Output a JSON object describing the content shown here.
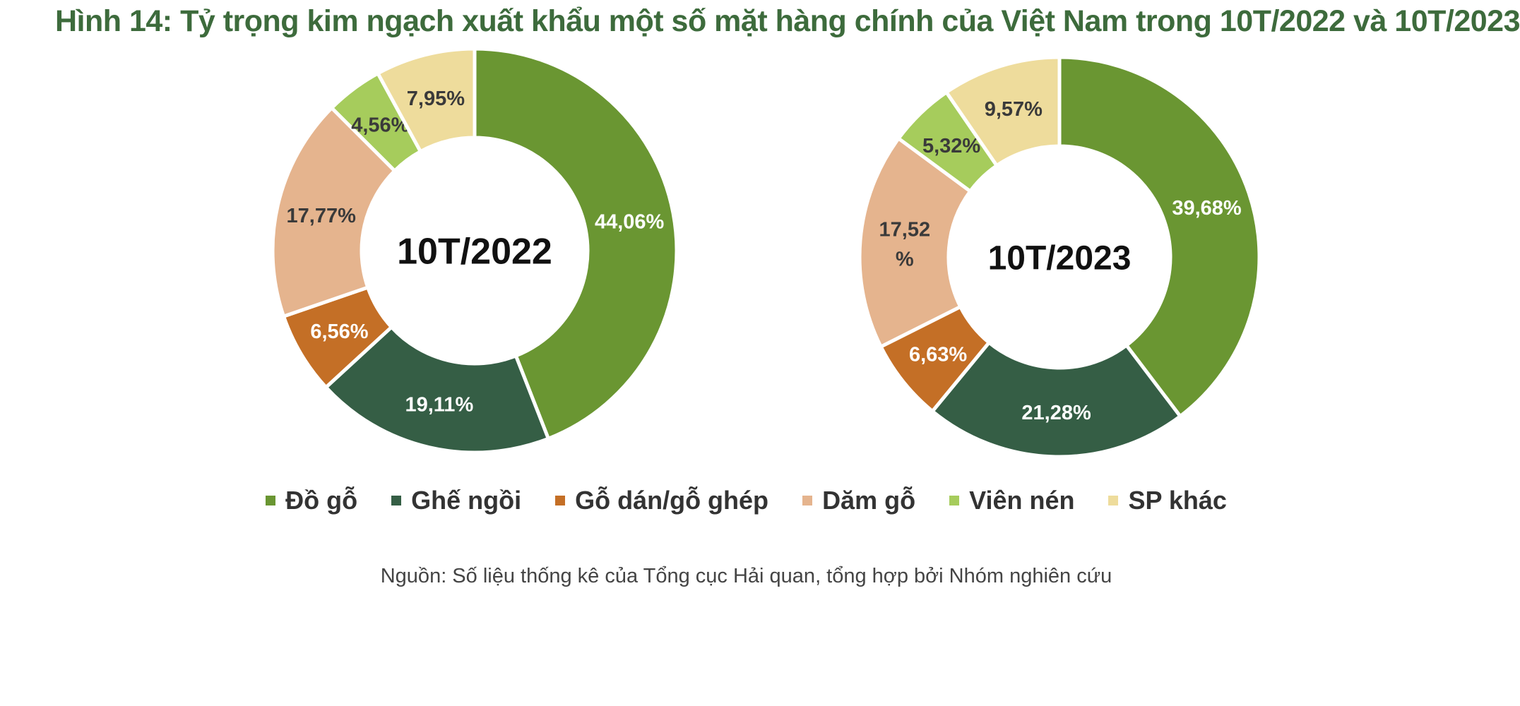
{
  "title": "Hình 14: Tỷ trọng kim ngạch xuất khẩu một số mặt hàng chính của Việt Nam trong 10T/2022 và 10T/2023",
  "source": "Nguồn: Số liệu thống kê của Tổng cục Hải quan, tổng hợp bởi Nhóm nghiên cứu",
  "chart_data": [
    {
      "type": "pie",
      "variant": "donut",
      "center_label": "10T/2022",
      "categories": [
        "Đồ gỗ",
        "Ghế ngồi",
        "Gỗ dán/gỗ ghép",
        "Dăm gỗ",
        "Viên nén",
        "SP khác"
      ],
      "values": [
        44.06,
        19.11,
        6.56,
        17.77,
        4.56,
        7.95
      ],
      "labels": [
        "44,06%",
        "19,11%",
        "6,56%",
        "17,77%",
        "4,56%",
        "7,95%"
      ],
      "colors": [
        "#6a9632",
        "#355e45",
        "#c46f26",
        "#e5b48e",
        "#a6cc5c",
        "#eedc9c"
      ]
    },
    {
      "type": "pie",
      "variant": "donut",
      "center_label": "10T/2023",
      "categories": [
        "Đồ gỗ",
        "Ghế ngồi",
        "Gỗ dán/gỗ ghép",
        "Dăm gỗ",
        "Viên nén",
        "SP khác"
      ],
      "values": [
        39.68,
        21.28,
        6.63,
        17.52,
        5.32,
        9.57
      ],
      "labels": [
        "39,68%",
        "21,28%",
        "6,63%",
        "17,52\n%",
        "5,32%",
        "9,57%"
      ],
      "colors": [
        "#6a9632",
        "#355e45",
        "#c46f26",
        "#e5b48e",
        "#a6cc5c",
        "#eedc9c"
      ]
    }
  ],
  "legend": [
    {
      "label": "Đồ gỗ",
      "color": "#6a9632"
    },
    {
      "label": "Ghế ngồi",
      "color": "#355e45"
    },
    {
      "label": "Gỗ dán/gỗ ghép",
      "color": "#c46f26"
    },
    {
      "label": "Dăm gỗ",
      "color": "#e5b48e"
    },
    {
      "label": "Viên nén",
      "color": "#a6cc5c"
    },
    {
      "label": "SP khác",
      "color": "#eedc9c"
    }
  ]
}
